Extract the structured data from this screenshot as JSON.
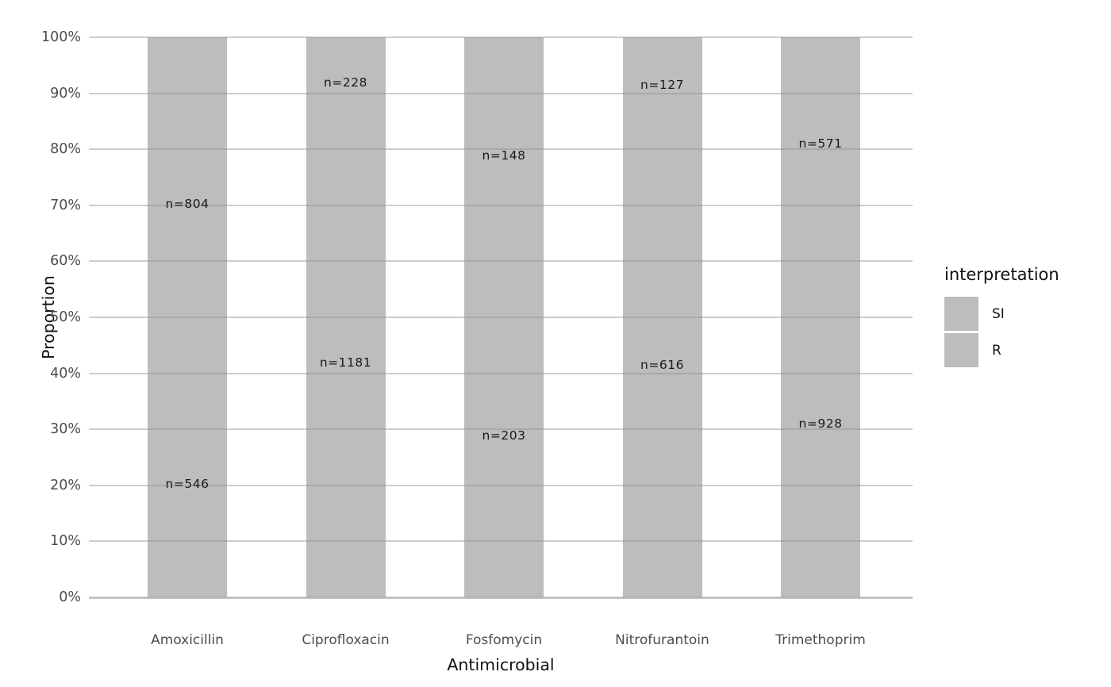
{
  "colors": {
    "background": "#ffffff",
    "bar_fill_apparent": "#bdbdbd",
    "bar_fill_overlay": "rgba(145,145,145,0.6)",
    "gridline": "#cdcdcd",
    "axis_line": "#c2c2c2",
    "tick_text": "#4d4d4d",
    "title_text": "#111111",
    "bar_label_text": "#1a1a1a"
  },
  "chart_data": {
    "type": "bar",
    "stacked": true,
    "title": "",
    "xlabel": "Antimicrobial",
    "ylabel": "Proportion",
    "categories": [
      "Amoxicillin",
      "Ciprofloxacin",
      "Fosfomycin",
      "Nitrofurantoin",
      "Trimethoprim"
    ],
    "series": [
      {
        "name": "SI",
        "position": "top",
        "values": [
          804,
          228,
          148,
          127,
          571
        ]
      },
      {
        "name": "R",
        "position": "bottom",
        "values": [
          546,
          1181,
          203,
          616,
          928
        ]
      }
    ],
    "bar_label_prefix": "n=",
    "bar_labels_top": [
      "n=804",
      "n=228",
      "n=148",
      "n=127",
      "n=571"
    ],
    "bar_labels_bottom": [
      "n=546",
      "n=1181",
      "n=203",
      "n=616",
      "n=928"
    ],
    "y_ticks": [
      "0%",
      "10%",
      "20%",
      "30%",
      "40%",
      "50%",
      "60%",
      "70%",
      "80%",
      "90%",
      "100%"
    ],
    "ylim": [
      0,
      1
    ],
    "grid": true,
    "legend": {
      "title": "interpretation",
      "position": "right",
      "entries": [
        {
          "label": "SI",
          "color": "#bdbdbd"
        },
        {
          "label": "R",
          "color": "#bdbdbd"
        }
      ]
    }
  }
}
